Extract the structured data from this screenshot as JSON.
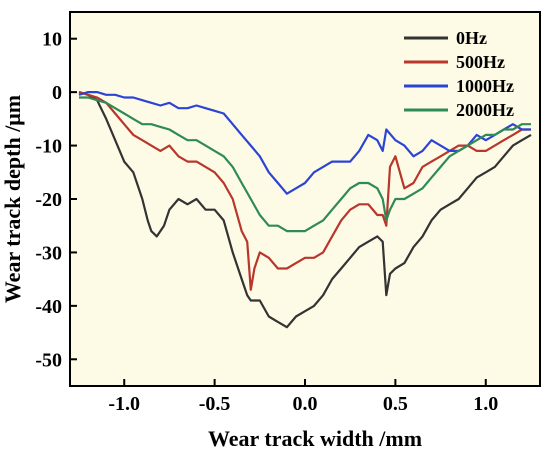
{
  "chart_data": {
    "type": "line",
    "title": "",
    "xlabel": "Wear track width /mm",
    "ylabel": "Wear track depth /μm",
    "xlim": [
      -1.3,
      1.3
    ],
    "ylim": [
      -55,
      15
    ],
    "xticks": [
      -1.0,
      -0.5,
      0.0,
      0.5,
      1.0
    ],
    "xtick_labels": [
      "-1.0",
      "-0.5",
      "0.0",
      "0.5",
      "1.0"
    ],
    "yticks": [
      -50,
      -40,
      -30,
      -20,
      -10,
      0,
      10
    ],
    "ytick_labels": [
      "-50",
      "-40",
      "-30",
      "-20",
      "-10",
      "0",
      "10"
    ],
    "grid": false,
    "legend_position": "top-right",
    "background": "#fdfbe6",
    "series": [
      {
        "name": "0Hz",
        "color": "#333333",
        "points": [
          [
            -1.25,
            0
          ],
          [
            -1.2,
            -0.5
          ],
          [
            -1.15,
            -1.5
          ],
          [
            -1.1,
            -5
          ],
          [
            -1.05,
            -9
          ],
          [
            -1.0,
            -13
          ],
          [
            -0.95,
            -15
          ],
          [
            -0.9,
            -20
          ],
          [
            -0.87,
            -24
          ],
          [
            -0.85,
            -26
          ],
          [
            -0.82,
            -27
          ],
          [
            -0.78,
            -25
          ],
          [
            -0.75,
            -22
          ],
          [
            -0.7,
            -20
          ],
          [
            -0.65,
            -21
          ],
          [
            -0.6,
            -20
          ],
          [
            -0.55,
            -22
          ],
          [
            -0.5,
            -22
          ],
          [
            -0.45,
            -24
          ],
          [
            -0.4,
            -30
          ],
          [
            -0.35,
            -35
          ],
          [
            -0.32,
            -38
          ],
          [
            -0.3,
            -39
          ],
          [
            -0.25,
            -39
          ],
          [
            -0.2,
            -42
          ],
          [
            -0.15,
            -43
          ],
          [
            -0.1,
            -44
          ],
          [
            -0.05,
            -42
          ],
          [
            0.0,
            -41
          ],
          [
            0.05,
            -40
          ],
          [
            0.1,
            -38
          ],
          [
            0.15,
            -35
          ],
          [
            0.2,
            -33
          ],
          [
            0.25,
            -31
          ],
          [
            0.3,
            -29
          ],
          [
            0.35,
            -28
          ],
          [
            0.4,
            -27
          ],
          [
            0.43,
            -28
          ],
          [
            0.45,
            -38
          ],
          [
            0.47,
            -34
          ],
          [
            0.5,
            -33
          ],
          [
            0.55,
            -32
          ],
          [
            0.6,
            -29
          ],
          [
            0.65,
            -27
          ],
          [
            0.7,
            -24
          ],
          [
            0.75,
            -22
          ],
          [
            0.8,
            -21
          ],
          [
            0.85,
            -20
          ],
          [
            0.9,
            -18
          ],
          [
            0.95,
            -16
          ],
          [
            1.0,
            -15
          ],
          [
            1.05,
            -14
          ],
          [
            1.1,
            -12
          ],
          [
            1.15,
            -10
          ],
          [
            1.2,
            -9
          ],
          [
            1.25,
            -8
          ]
        ]
      },
      {
        "name": "500Hz",
        "color": "#b8362c",
        "points": [
          [
            -1.25,
            0
          ],
          [
            -1.2,
            -0.5
          ],
          [
            -1.15,
            -1
          ],
          [
            -1.1,
            -2
          ],
          [
            -1.05,
            -4
          ],
          [
            -1.0,
            -6
          ],
          [
            -0.95,
            -8
          ],
          [
            -0.9,
            -9
          ],
          [
            -0.85,
            -10
          ],
          [
            -0.8,
            -11
          ],
          [
            -0.75,
            -10
          ],
          [
            -0.7,
            -12
          ],
          [
            -0.65,
            -13
          ],
          [
            -0.6,
            -13
          ],
          [
            -0.55,
            -14
          ],
          [
            -0.5,
            -15
          ],
          [
            -0.45,
            -17
          ],
          [
            -0.4,
            -20
          ],
          [
            -0.35,
            -26
          ],
          [
            -0.32,
            -28
          ],
          [
            -0.3,
            -37
          ],
          [
            -0.28,
            -33
          ],
          [
            -0.25,
            -30
          ],
          [
            -0.2,
            -31
          ],
          [
            -0.15,
            -33
          ],
          [
            -0.1,
            -33
          ],
          [
            -0.05,
            -32
          ],
          [
            0.0,
            -31
          ],
          [
            0.05,
            -31
          ],
          [
            0.1,
            -30
          ],
          [
            0.15,
            -27
          ],
          [
            0.2,
            -24
          ],
          [
            0.25,
            -22
          ],
          [
            0.3,
            -21
          ],
          [
            0.35,
            -21
          ],
          [
            0.4,
            -23
          ],
          [
            0.43,
            -23
          ],
          [
            0.45,
            -25
          ],
          [
            0.47,
            -14
          ],
          [
            0.5,
            -12
          ],
          [
            0.55,
            -18
          ],
          [
            0.6,
            -17
          ],
          [
            0.65,
            -14
          ],
          [
            0.7,
            -13
          ],
          [
            0.75,
            -12
          ],
          [
            0.8,
            -11
          ],
          [
            0.85,
            -10
          ],
          [
            0.9,
            -10
          ],
          [
            0.95,
            -11
          ],
          [
            1.0,
            -11
          ],
          [
            1.05,
            -10
          ],
          [
            1.1,
            -9
          ],
          [
            1.15,
            -8
          ],
          [
            1.2,
            -7
          ],
          [
            1.25,
            -7
          ]
        ]
      },
      {
        "name": "1000Hz",
        "color": "#2c44d6",
        "points": [
          [
            -1.25,
            -0.5
          ],
          [
            -1.2,
            0
          ],
          [
            -1.15,
            0
          ],
          [
            -1.1,
            -0.5
          ],
          [
            -1.05,
            -0.5
          ],
          [
            -1.0,
            -1
          ],
          [
            -0.95,
            -1
          ],
          [
            -0.9,
            -1.5
          ],
          [
            -0.85,
            -2
          ],
          [
            -0.8,
            -2.5
          ],
          [
            -0.75,
            -2
          ],
          [
            -0.7,
            -3
          ],
          [
            -0.65,
            -3
          ],
          [
            -0.6,
            -2.5
          ],
          [
            -0.55,
            -3
          ],
          [
            -0.5,
            -3.5
          ],
          [
            -0.45,
            -4
          ],
          [
            -0.4,
            -6
          ],
          [
            -0.35,
            -8
          ],
          [
            -0.3,
            -10
          ],
          [
            -0.25,
            -12
          ],
          [
            -0.2,
            -15
          ],
          [
            -0.15,
            -17
          ],
          [
            -0.1,
            -19
          ],
          [
            -0.05,
            -18
          ],
          [
            0.0,
            -17
          ],
          [
            0.05,
            -15
          ],
          [
            0.1,
            -14
          ],
          [
            0.15,
            -13
          ],
          [
            0.2,
            -13
          ],
          [
            0.25,
            -13
          ],
          [
            0.3,
            -11
          ],
          [
            0.35,
            -8
          ],
          [
            0.4,
            -9
          ],
          [
            0.43,
            -11
          ],
          [
            0.45,
            -7
          ],
          [
            0.5,
            -9
          ],
          [
            0.55,
            -10
          ],
          [
            0.6,
            -12
          ],
          [
            0.65,
            -11
          ],
          [
            0.7,
            -9
          ],
          [
            0.75,
            -10
          ],
          [
            0.8,
            -11
          ],
          [
            0.85,
            -11
          ],
          [
            0.9,
            -10
          ],
          [
            0.95,
            -8
          ],
          [
            1.0,
            -9
          ],
          [
            1.05,
            -8
          ],
          [
            1.1,
            -7
          ],
          [
            1.15,
            -6
          ],
          [
            1.2,
            -7
          ],
          [
            1.25,
            -7
          ]
        ]
      },
      {
        "name": "2000Hz",
        "color": "#2e8a56",
        "points": [
          [
            -1.25,
            -1
          ],
          [
            -1.2,
            -1
          ],
          [
            -1.15,
            -1.5
          ],
          [
            -1.1,
            -2
          ],
          [
            -1.05,
            -3
          ],
          [
            -1.0,
            -4
          ],
          [
            -0.95,
            -5
          ],
          [
            -0.9,
            -6
          ],
          [
            -0.85,
            -6
          ],
          [
            -0.8,
            -6.5
          ],
          [
            -0.75,
            -7
          ],
          [
            -0.7,
            -8
          ],
          [
            -0.65,
            -9
          ],
          [
            -0.6,
            -9
          ],
          [
            -0.55,
            -10
          ],
          [
            -0.5,
            -11
          ],
          [
            -0.45,
            -12
          ],
          [
            -0.4,
            -14
          ],
          [
            -0.35,
            -17
          ],
          [
            -0.3,
            -20
          ],
          [
            -0.25,
            -23
          ],
          [
            -0.2,
            -25
          ],
          [
            -0.15,
            -25
          ],
          [
            -0.1,
            -26
          ],
          [
            -0.05,
            -26
          ],
          [
            0.0,
            -26
          ],
          [
            0.05,
            -25
          ],
          [
            0.1,
            -24
          ],
          [
            0.15,
            -22
          ],
          [
            0.2,
            -20
          ],
          [
            0.25,
            -18
          ],
          [
            0.3,
            -17
          ],
          [
            0.35,
            -17
          ],
          [
            0.4,
            -18
          ],
          [
            0.43,
            -20
          ],
          [
            0.45,
            -24
          ],
          [
            0.47,
            -22
          ],
          [
            0.5,
            -20
          ],
          [
            0.55,
            -20
          ],
          [
            0.6,
            -19
          ],
          [
            0.65,
            -18
          ],
          [
            0.7,
            -16
          ],
          [
            0.75,
            -14
          ],
          [
            0.8,
            -12
          ],
          [
            0.85,
            -11
          ],
          [
            0.9,
            -10
          ],
          [
            0.95,
            -9
          ],
          [
            1.0,
            -8
          ],
          [
            1.05,
            -8
          ],
          [
            1.1,
            -7
          ],
          [
            1.15,
            -7
          ],
          [
            1.2,
            -6
          ],
          [
            1.25,
            -6
          ]
        ]
      }
    ]
  }
}
